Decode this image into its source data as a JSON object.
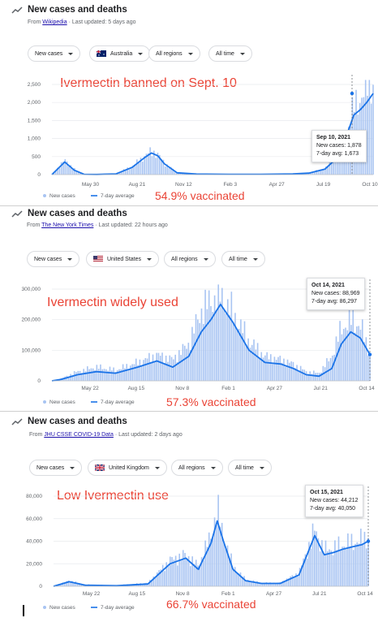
{
  "panels": [
    {
      "header": {
        "title": "New cases and deaths",
        "source_prefix": "From ",
        "source_link": "Wikipedia",
        "updated": " · Last updated: 5 days ago"
      },
      "filters": {
        "metric": "New cases",
        "country": "Australia",
        "regions": "All regions",
        "time": "All time"
      },
      "annotation": "Ivermectin banned on Sept. 10",
      "vaccinated": "54.9% vaccinated",
      "tooltip": {
        "date": "Sep 10, 2021",
        "cases": "New cases: 1,878",
        "avg": "7-day avg: 1,673"
      },
      "legend": {
        "cases": "New cases",
        "avg": "7-day average"
      }
    },
    {
      "header": {
        "title": "New cases and deaths",
        "source_prefix": "From ",
        "source_link": "The New York Times",
        "updated": " · Last updated: 22 hours ago"
      },
      "filters": {
        "metric": "New cases",
        "country": "United States",
        "regions": "All regions",
        "time": "All time"
      },
      "annotation": "Ivermectin widely used",
      "vaccinated": "57.3% vaccinated",
      "tooltip": {
        "date": "Oct 14, 2021",
        "cases": "New cases: 88,969",
        "avg": "7-day avg: 86,297"
      },
      "legend": {
        "cases": "New cases",
        "avg": "7-day average"
      }
    },
    {
      "header": {
        "title": "New cases and deaths",
        "source_prefix": "From ",
        "source_link": "JHU CSSE COVID-19 Data",
        "updated": " · Last updated: 2 days ago"
      },
      "filters": {
        "metric": "New cases",
        "country": "United Kingdom",
        "regions": "All regions",
        "time": "All time"
      },
      "annotation": "Low Ivermectin use",
      "vaccinated": "66.7% vaccinated",
      "tooltip": {
        "date": "Oct 15, 2021",
        "cases": "New cases: 44,212",
        "avg": "7-day avg: 40,050"
      },
      "legend": {
        "cases": "New cases",
        "avg": "7-day average"
      }
    }
  ],
  "chart_data": [
    {
      "type": "area",
      "country": "Australia",
      "x_ticks": [
        "May 30",
        "Aug 21",
        "Nov 12",
        "Feb 3",
        "Apr 27",
        "Jul 19",
        "Oct 10"
      ],
      "y_ticks": [
        "0",
        "500",
        "1,000",
        "1,500",
        "2,000",
        "2,500"
      ],
      "ylim": [
        0,
        2500
      ],
      "series": [
        {
          "name": "7-day average",
          "x": [
            0,
            0.04,
            0.07,
            0.1,
            0.14,
            0.2,
            0.25,
            0.29,
            0.31,
            0.33,
            0.35,
            0.39,
            0.45,
            0.55,
            0.65,
            0.75,
            0.8,
            0.85,
            0.88,
            0.91,
            0.94,
            0.96,
            0.98,
            1.0
          ],
          "values": [
            0,
            350,
            120,
            10,
            5,
            20,
            200,
            480,
            600,
            520,
            300,
            50,
            15,
            10,
            10,
            20,
            40,
            150,
            400,
            900,
            1650,
            1800,
            2000,
            2250
          ]
        },
        {
          "name": "New cases",
          "x": [
            0,
            0.04,
            0.07,
            0.1,
            0.14,
            0.2,
            0.25,
            0.29,
            0.31,
            0.33,
            0.35,
            0.39,
            0.45,
            0.55,
            0.65,
            0.75,
            0.8,
            0.85,
            0.88,
            0.91,
            0.94,
            0.96,
            0.98,
            1.0
          ],
          "values": [
            0,
            400,
            150,
            10,
            5,
            25,
            230,
            520,
            650,
            560,
            320,
            60,
            15,
            10,
            10,
            20,
            45,
            170,
            450,
            1000,
            1880,
            2100,
            2450,
            2550
          ]
        }
      ]
    },
    {
      "type": "area",
      "country": "United States",
      "x_ticks": [
        "May 22",
        "Aug 15",
        "Nov 8",
        "Feb 1",
        "Apr 27",
        "Jul 21",
        "Oct 14"
      ],
      "y_ticks": [
        "0",
        "100,000",
        "200,000",
        "300,000"
      ],
      "ylim": [
        0,
        300000
      ],
      "series": [
        {
          "name": "7-day average",
          "x": [
            0,
            0.03,
            0.08,
            0.14,
            0.2,
            0.27,
            0.33,
            0.38,
            0.43,
            0.47,
            0.5,
            0.53,
            0.57,
            0.62,
            0.67,
            0.72,
            0.76,
            0.8,
            0.84,
            0.88,
            0.91,
            0.94,
            0.97,
            1.0
          ],
          "values": [
            0,
            5000,
            20000,
            30000,
            25000,
            45000,
            65000,
            45000,
            80000,
            160000,
            200000,
            250000,
            190000,
            100000,
            60000,
            55000,
            40000,
            20000,
            15000,
            40000,
            120000,
            160000,
            140000,
            86000
          ]
        },
        {
          "name": "New cases",
          "x": [
            0,
            0.03,
            0.08,
            0.14,
            0.2,
            0.27,
            0.33,
            0.38,
            0.43,
            0.47,
            0.5,
            0.53,
            0.57,
            0.62,
            0.67,
            0.72,
            0.76,
            0.8,
            0.84,
            0.88,
            0.91,
            0.94,
            0.97,
            1.0
          ],
          "values": [
            0,
            8000,
            30000,
            45000,
            35000,
            60000,
            85000,
            70000,
            120000,
            230000,
            260000,
            280000,
            220000,
            130000,
            80000,
            70000,
            55000,
            30000,
            25000,
            80000,
            170000,
            200000,
            180000,
            89000
          ]
        }
      ]
    },
    {
      "type": "area",
      "country": "United Kingdom",
      "x_ticks": [
        "May 22",
        "Aug 15",
        "Nov 8",
        "Feb 1",
        "Apr 27",
        "Jul 21",
        "Oct 14"
      ],
      "y_ticks": [
        "0",
        "20,000",
        "40,000",
        "60,000",
        "80,000"
      ],
      "ylim": [
        0,
        80000
      ],
      "series": [
        {
          "name": "7-day average",
          "x": [
            0,
            0.05,
            0.1,
            0.2,
            0.3,
            0.37,
            0.42,
            0.46,
            0.5,
            0.52,
            0.54,
            0.57,
            0.61,
            0.66,
            0.72,
            0.78,
            0.83,
            0.86,
            0.89,
            0.92,
            0.95,
            0.98,
            1.0
          ],
          "values": [
            0,
            4000,
            1000,
            500,
            2000,
            20000,
            25000,
            15000,
            38000,
            58000,
            40000,
            15000,
            5000,
            2500,
            2500,
            10000,
            45000,
            28000,
            30000,
            33000,
            35000,
            37000,
            40000
          ]
        },
        {
          "name": "New cases",
          "x": [
            0,
            0.05,
            0.1,
            0.2,
            0.3,
            0.37,
            0.42,
            0.46,
            0.5,
            0.52,
            0.54,
            0.57,
            0.61,
            0.66,
            0.72,
            0.78,
            0.83,
            0.86,
            0.89,
            0.92,
            0.95,
            0.98,
            1.0
          ],
          "values": [
            0,
            5000,
            1500,
            800,
            3000,
            23000,
            28000,
            18000,
            45000,
            68000,
            45000,
            18000,
            6000,
            3000,
            3000,
            12000,
            50000,
            32000,
            34000,
            37000,
            39000,
            41000,
            44000
          ]
        }
      ]
    }
  ]
}
